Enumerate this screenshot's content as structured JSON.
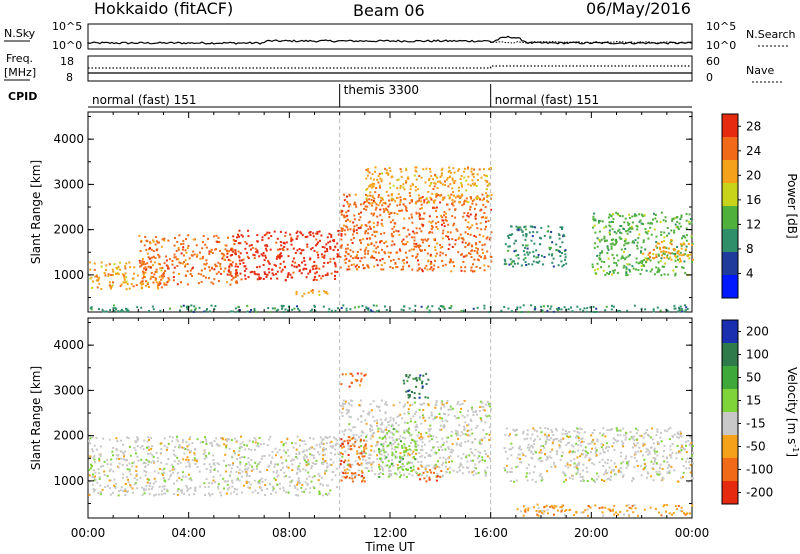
{
  "header": {
    "station": "Hokkaido (fitACF)",
    "beam": "Beam 06",
    "date": "06/May/2016"
  },
  "top_panels": {
    "nsky_label": "N.Sky",
    "nsearch_label": "N.Search",
    "nsky_ticks": [
      "10^5",
      "10^0"
    ],
    "nsearch_ticks": [
      "10^5",
      "10^0"
    ],
    "freq_label": "Freq.",
    "freq_unit": "[MHz]",
    "freq_ticks": [
      "18",
      "8"
    ],
    "nave_label": "Nave",
    "nave_ticks": [
      "60",
      "0"
    ],
    "cpid_label": "CPID"
  },
  "cpid_segments": [
    {
      "label": "normal (fast) 151",
      "start_hour": 0,
      "end_hour": 10
    },
    {
      "label": "themis 3300",
      "start_hour": 10,
      "end_hour": 16
    },
    {
      "label": "normal (fast) 151",
      "start_hour": 16,
      "end_hour": 24
    }
  ],
  "chart_data": [
    {
      "type": "heatmap",
      "title": "",
      "xlabel": "Time UT",
      "ylabel": "Slant Range [km]",
      "x_ticks": [
        "00:00",
        "04:00",
        "08:00",
        "12:00",
        "16:00",
        "20:00",
        "00:00"
      ],
      "xlim_hours": [
        0,
        24
      ],
      "y_ticks": [
        "1000",
        "2000",
        "3000",
        "4000"
      ],
      "ylim_km": [
        180,
        4600
      ],
      "colorbar": {
        "label": "Power [dB]",
        "ticks": [
          "4",
          "8",
          "12",
          "16",
          "20",
          "24",
          "28"
        ],
        "range": [
          0,
          30
        ],
        "colors": [
          "#0019ff",
          "#1f3b9c",
          "#2f8f6a",
          "#4fb03c",
          "#c8d41a",
          "#f5a21a",
          "#f06a18",
          "#e62a10"
        ]
      },
      "echo_regions": [
        {
          "start_hour": 0.0,
          "end_hour": 3.0,
          "range_km": [
            700,
            1300
          ],
          "value_db": 22
        },
        {
          "start_hour": 2.0,
          "end_hour": 6.0,
          "range_km": [
            800,
            1900
          ],
          "value_db": 26
        },
        {
          "start_hour": 5.5,
          "end_hour": 10.0,
          "range_km": [
            900,
            2000
          ],
          "value_db": 28
        },
        {
          "start_hour": 10.0,
          "end_hour": 16.0,
          "range_km": [
            1100,
            2800
          ],
          "value_db": 27
        },
        {
          "start_hour": 11.0,
          "end_hour": 16.0,
          "range_km": [
            2600,
            3400
          ],
          "value_db": 20
        },
        {
          "start_hour": 8.0,
          "end_hour": 9.5,
          "range_km": [
            550,
            700
          ],
          "value_db": 22
        },
        {
          "start_hour": 16.5,
          "end_hour": 19.0,
          "range_km": [
            1200,
            2100
          ],
          "value_db": 10
        },
        {
          "start_hour": 20.0,
          "end_hour": 24.0,
          "range_km": [
            1000,
            2400
          ],
          "value_db": 12
        },
        {
          "start_hour": 22.0,
          "end_hour": 24.0,
          "range_km": [
            1300,
            1800
          ],
          "value_db": 20
        },
        {
          "start_hour": 0.0,
          "end_hour": 24.0,
          "range_km": [
            200,
            350
          ],
          "value_db": 8
        }
      ]
    },
    {
      "type": "heatmap",
      "title": "",
      "xlabel": "Time UT",
      "ylabel": "Slant Range [km]",
      "x_ticks": [
        "00:00",
        "04:00",
        "08:00",
        "12:00",
        "16:00",
        "20:00",
        "00:00"
      ],
      "xlim_hours": [
        0,
        24
      ],
      "y_ticks": [
        "1000",
        "2000",
        "3000",
        "4000"
      ],
      "ylim_km": [
        180,
        4600
      ],
      "colorbar": {
        "label": "Velocity [m s^-1]",
        "ticks": [
          "200",
          "100",
          "50",
          "15",
          "-15",
          "-50",
          "-100",
          "-200"
        ],
        "colors": [
          "#1a2fb0",
          "#2f7a4a",
          "#3fa83a",
          "#7fd43a",
          "#c8c8c8",
          "#f5a21a",
          "#f06a18",
          "#e62a10"
        ]
      },
      "echo_regions": [
        {
          "start_hour": 0.0,
          "end_hour": 10.0,
          "range_km": [
            700,
            2000
          ],
          "value_ms": 0
        },
        {
          "start_hour": 10.0,
          "end_hour": 16.0,
          "range_km": [
            1100,
            2800
          ],
          "value_ms": 0
        },
        {
          "start_hour": 10.0,
          "end_hour": 11.0,
          "range_km": [
            1000,
            2000
          ],
          "value_ms": -50
        },
        {
          "start_hour": 11.5,
          "end_hour": 13.0,
          "range_km": [
            1100,
            2200
          ],
          "value_ms": 30
        },
        {
          "start_hour": 13.0,
          "end_hour": 14.0,
          "range_km": [
            1000,
            1300
          ],
          "value_ms": -50
        },
        {
          "start_hour": 12.5,
          "end_hour": 13.5,
          "range_km": [
            2800,
            3400
          ],
          "value_ms": 150
        },
        {
          "start_hour": 10.0,
          "end_hour": 11.0,
          "range_km": [
            3100,
            3400
          ],
          "value_ms": -50
        },
        {
          "start_hour": 16.5,
          "end_hour": 24.0,
          "range_km": [
            1000,
            2200
          ],
          "value_ms": 0
        },
        {
          "start_hour": 17.0,
          "end_hour": 24.0,
          "range_km": [
            250,
            500
          ],
          "value_ms": -40
        }
      ]
    }
  ]
}
